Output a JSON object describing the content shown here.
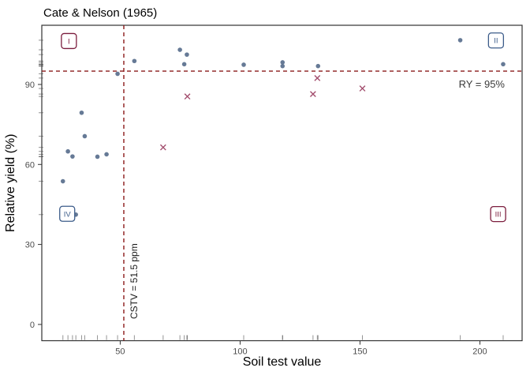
{
  "title": "Cate & Nelson (1965)",
  "chart_data": {
    "type": "scatter",
    "title": "Cate & Nelson (1965)",
    "xlabel": "Soil test value",
    "ylabel": "Relative yield (%)",
    "xlim": [
      17.3,
      217.6
    ],
    "ylim": [
      -6.1,
      112.2
    ],
    "x_ticks": [
      50,
      100,
      150,
      200
    ],
    "y_ticks": [
      0,
      30,
      60,
      90
    ],
    "grid": false,
    "rug": true,
    "series": [
      {
        "name": "well-classified-points",
        "marker": "circle",
        "color": "#5E7390",
        "points": [
          [
            26.1,
            53.7
          ],
          [
            28.2,
            64.9
          ],
          [
            30.1,
            63.0
          ],
          [
            31.5,
            41.2
          ],
          [
            33.9,
            79.4
          ],
          [
            35.2,
            70.6
          ],
          [
            40.5,
            62.9
          ],
          [
            44.3,
            63.8
          ],
          [
            48.9,
            94.0
          ],
          [
            55.9,
            98.8
          ],
          [
            74.9,
            103.0
          ],
          [
            77.8,
            101.2
          ],
          [
            76.7,
            97.6
          ],
          [
            101.5,
            97.4
          ],
          [
            117.7,
            98.3
          ],
          [
            117.7,
            96.9
          ],
          [
            132.5,
            96.9
          ],
          [
            191.8,
            106.6
          ],
          [
            209.7,
            97.6
          ]
        ]
      },
      {
        "name": "misclassified-points",
        "marker": "x",
        "color": "#A34E6E",
        "points": [
          [
            67.9,
            66.4
          ],
          [
            78.0,
            85.5
          ],
          [
            130.4,
            86.4
          ],
          [
            132.2,
            92.4
          ],
          [
            151.0,
            88.5
          ]
        ]
      }
    ],
    "reference_lines": {
      "cstv_x": 51.5,
      "ry_y": 95,
      "color": "#8B1A1A",
      "style": "dashed"
    },
    "annotations": {
      "cstv_label": {
        "text": "CSTV = 51.5 ppm",
        "x": 55.1,
        "y": 2.0,
        "rotated": true
      },
      "ry_label": {
        "text": "RY = 95%",
        "x": 209.5,
        "y": 89.0
      },
      "quadrants": [
        {
          "label": "I",
          "x": 28.6,
          "y": 106.3,
          "color": "#7C1E3E"
        },
        {
          "label": "II",
          "x": 206.7,
          "y": 106.5,
          "color": "#3C5C8A"
        },
        {
          "label": "III",
          "x": 207.6,
          "y": 41.4,
          "color": "#7C1E3E"
        },
        {
          "label": "IV",
          "x": 27.9,
          "y": 41.5,
          "color": "#3C5C8A"
        }
      ]
    },
    "legend": "none"
  }
}
